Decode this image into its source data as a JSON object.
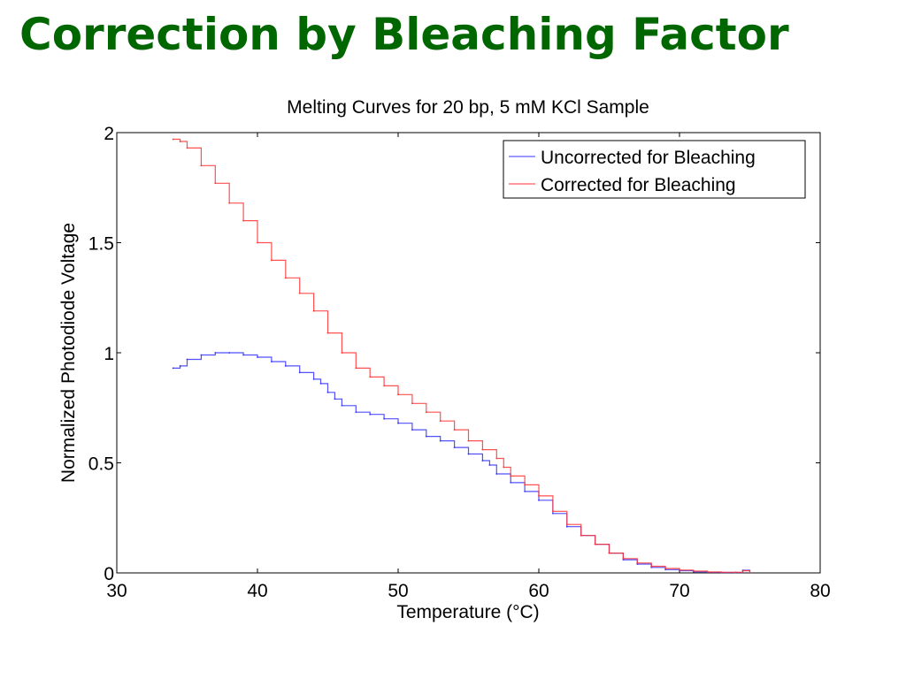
{
  "slide": {
    "title": "Correction by Bleaching Factor"
  },
  "colors": {
    "title": "#006600",
    "series_uncorrected": "#3333ff",
    "series_corrected": "#ff3333",
    "axes": "#000000"
  },
  "chart_data": {
    "type": "line",
    "title": "Melting Curves for 20 bp, 5 mM KCl Sample",
    "xlabel": "Temperature (°C)",
    "ylabel": "Normalized Photodiode Voltage",
    "xlim": [
      30,
      80
    ],
    "ylim": [
      0,
      2
    ],
    "xticks": [
      30,
      40,
      50,
      60,
      70,
      80
    ],
    "yticks": [
      0,
      0.5,
      1,
      1.5,
      2
    ],
    "xtick_labels": [
      "30",
      "40",
      "50",
      "60",
      "70",
      "80"
    ],
    "ytick_labels": [
      "0",
      "0.5",
      "1",
      "1.5",
      "2"
    ],
    "grid": false,
    "legend_position": "top-right",
    "series": [
      {
        "name": "Uncorrected for Bleaching",
        "color": "#3333ff",
        "x": [
          34,
          34.5,
          35,
          36,
          37,
          38,
          39,
          40,
          41,
          42,
          43,
          44,
          44.5,
          45,
          45.5,
          46,
          47,
          48,
          49,
          50,
          51,
          52,
          53,
          54,
          55,
          56,
          56.5,
          57,
          58,
          59,
          60,
          61,
          62,
          63,
          64,
          65,
          66,
          67,
          68,
          69,
          70,
          71,
          72,
          73,
          74,
          74.5,
          75
        ],
        "y": [
          0.93,
          0.94,
          0.97,
          0.99,
          1.0,
          1.0,
          0.99,
          0.98,
          0.96,
          0.94,
          0.91,
          0.88,
          0.86,
          0.82,
          0.79,
          0.76,
          0.73,
          0.72,
          0.7,
          0.68,
          0.65,
          0.62,
          0.6,
          0.57,
          0.54,
          0.51,
          0.49,
          0.45,
          0.41,
          0.37,
          0.33,
          0.27,
          0.21,
          0.17,
          0.13,
          0.09,
          0.06,
          0.04,
          0.025,
          0.015,
          0.01,
          0.005,
          0.003,
          0.002,
          0.002,
          0.012,
          0.0
        ]
      },
      {
        "name": "Corrected for Bleaching",
        "color": "#ff3333",
        "x": [
          34,
          34.5,
          35,
          36,
          37,
          38,
          39,
          40,
          41,
          42,
          43,
          44,
          45,
          46,
          47,
          48,
          49,
          50,
          51,
          52,
          53,
          54,
          55,
          56,
          57,
          57.5,
          58,
          59,
          60,
          61,
          62,
          63,
          64,
          65,
          66,
          67,
          68,
          69,
          70,
          71,
          72,
          73,
          74,
          74.5,
          75
        ],
        "y": [
          1.97,
          1.96,
          1.93,
          1.85,
          1.77,
          1.68,
          1.6,
          1.5,
          1.42,
          1.34,
          1.27,
          1.19,
          1.09,
          1.0,
          0.93,
          0.89,
          0.85,
          0.81,
          0.77,
          0.73,
          0.69,
          0.65,
          0.6,
          0.56,
          0.52,
          0.48,
          0.44,
          0.4,
          0.35,
          0.28,
          0.22,
          0.17,
          0.13,
          0.09,
          0.065,
          0.045,
          0.03,
          0.02,
          0.013,
          0.008,
          0.004,
          0.003,
          0.003,
          0.01,
          0.0
        ]
      }
    ]
  }
}
